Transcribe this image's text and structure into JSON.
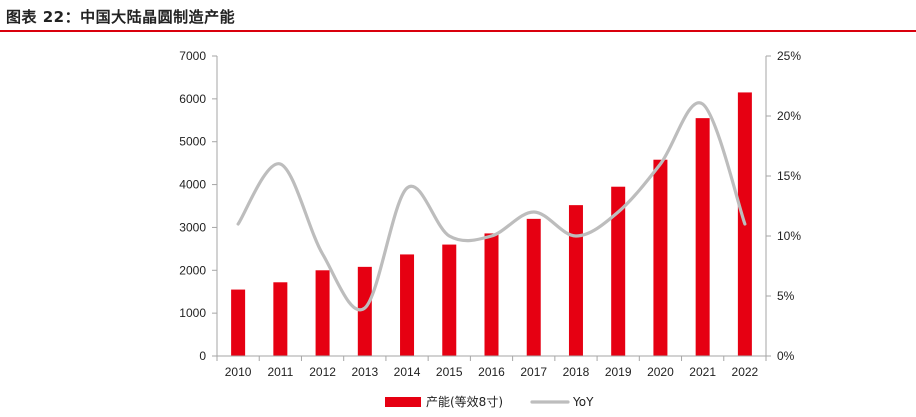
{
  "page": {
    "title": "图表 22：中国大陆晶圆制造产能"
  },
  "colors": {
    "accent": "#d9000d",
    "bar": "#e60012",
    "line": "#bdbdbd",
    "axis": "#a6a6a6",
    "text": "#222222"
  },
  "chart_data": {
    "type": "bar",
    "title": "",
    "xlabel": "",
    "ylabel": "",
    "categories": [
      "2010",
      "2011",
      "2012",
      "2013",
      "2014",
      "2015",
      "2016",
      "2017",
      "2018",
      "2019",
      "2020",
      "2021",
      "2022"
    ],
    "series": [
      {
        "name": "产能(等效8寸)",
        "type": "bar",
        "axis": "left",
        "color": "#e60012",
        "values": [
          1550,
          1720,
          2000,
          2080,
          2370,
          2600,
          2860,
          3200,
          3520,
          3950,
          4580,
          5550,
          6150
        ]
      },
      {
        "name": "YoY",
        "type": "line",
        "axis": "right",
        "smooth": true,
        "color": "#bdbdbd",
        "values": [
          11,
          16,
          8.5,
          4,
          14,
          10,
          10,
          12,
          10,
          12,
          16,
          21,
          11
        ]
      }
    ],
    "ylim_left": [
      0,
      7000
    ],
    "yticks_left": [
      0,
      1000,
      2000,
      3000,
      4000,
      5000,
      6000,
      7000
    ],
    "ytick_labels_left": [
      "0",
      "1000",
      "2000",
      "3000",
      "4000",
      "5000",
      "6000",
      "7000"
    ],
    "ylim_right": [
      0,
      25
    ],
    "yticks_right": [
      0,
      5,
      10,
      15,
      20,
      25
    ],
    "ytick_labels_right": [
      "0%",
      "5%",
      "10%",
      "15%",
      "20%",
      "25%"
    ],
    "grid": false,
    "legend_position": "bottom-center",
    "legend_labels": [
      "产能(等效8寸)",
      "YoY"
    ]
  }
}
